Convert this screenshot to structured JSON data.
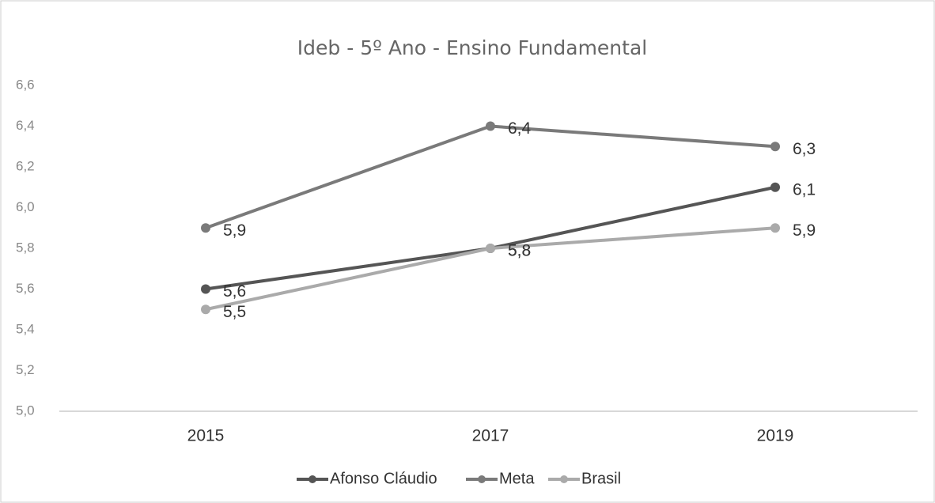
{
  "chart_data": {
    "type": "line",
    "title": "Ideb - 5º Ano - Ensino Fundamental",
    "categories": [
      "2015",
      "2017",
      "2019"
    ],
    "series": [
      {
        "name": "Afonso Cláudio",
        "color": "#555555",
        "values": [
          5.6,
          5.8,
          6.1
        ],
        "value_labels": [
          "5,6",
          "5,8",
          "6,1"
        ]
      },
      {
        "name": "Meta",
        "color": "#7a7a7a",
        "values": [
          5.9,
          6.4,
          6.3
        ],
        "value_labels": [
          "5,9",
          "6,4",
          "6,3"
        ]
      },
      {
        "name": "Brasil",
        "color": "#aaaaaa",
        "values": [
          5.5,
          5.8,
          5.9
        ],
        "value_labels": [
          "5,5",
          "5,8",
          "5,9"
        ]
      }
    ],
    "ylim": [
      5.0,
      6.6
    ],
    "yticks": [
      {
        "value": 5.0,
        "label": "5,0"
      },
      {
        "value": 5.2,
        "label": "5,2"
      },
      {
        "value": 5.4,
        "label": "5,4"
      },
      {
        "value": 5.6,
        "label": "5,6"
      },
      {
        "value": 5.8,
        "label": "5,8"
      },
      {
        "value": 6.0,
        "label": "6,0"
      },
      {
        "value": 6.2,
        "label": "6,2"
      },
      {
        "value": 6.4,
        "label": "6,4"
      },
      {
        "value": 6.6,
        "label": "6,6"
      }
    ],
    "grid": false,
    "legend": "bottom"
  }
}
